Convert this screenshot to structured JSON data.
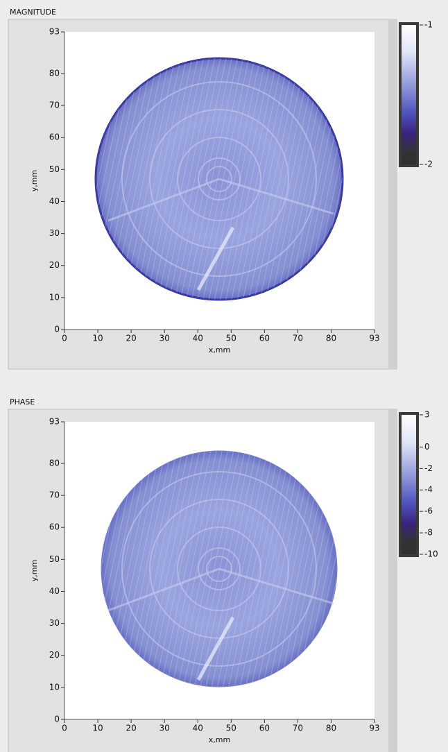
{
  "panels": [
    {
      "title": "MAGNITUDE",
      "xlabel": "x,mm",
      "ylabel": "y,mm",
      "xlim": [
        0,
        93
      ],
      "ylim": [
        0,
        93
      ],
      "xticks": [
        0,
        10,
        20,
        30,
        40,
        50,
        60,
        70,
        80,
        93
      ],
      "yticks": [
        0,
        10,
        20,
        30,
        40,
        50,
        60,
        70,
        80,
        93
      ],
      "colorbar": {
        "lim": [
          -2,
          -1
        ],
        "ticks": [
          -1,
          -2
        ]
      }
    },
    {
      "title": "PHASE",
      "xlabel": "x,mm",
      "ylabel": "y,mm",
      "xlim": [
        0,
        93
      ],
      "ylim": [
        0,
        93
      ],
      "xticks": [
        0,
        10,
        20,
        30,
        40,
        50,
        60,
        70,
        80,
        93
      ],
      "yticks": [
        0,
        10,
        20,
        30,
        40,
        50,
        60,
        70,
        80,
        93
      ],
      "colorbar": {
        "lim": [
          -10,
          3
        ],
        "ticks": [
          3,
          0,
          -2,
          -4,
          -6,
          -8,
          -10
        ]
      }
    }
  ]
}
